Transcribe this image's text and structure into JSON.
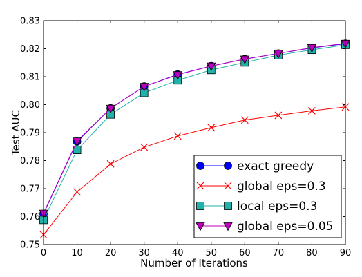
{
  "chart_data": {
    "type": "line",
    "xlabel": "Number of Iterations",
    "ylabel": "Test AUC",
    "xlim": [
      0,
      90
    ],
    "ylim": [
      0.75,
      0.83
    ],
    "x": [
      0,
      10,
      20,
      30,
      40,
      50,
      60,
      70,
      80,
      90
    ],
    "xticks": [
      "0",
      "10",
      "20",
      "30",
      "40",
      "50",
      "60",
      "70",
      "80",
      "90"
    ],
    "yticks": [
      "0.75",
      "0.76",
      "0.77",
      "0.78",
      "0.79",
      "0.80",
      "0.81",
      "0.82",
      "0.83"
    ],
    "grid": false,
    "legend_position": "lower-right",
    "series": [
      {
        "name": "exact greedy",
        "color": "#0000ff",
        "marker": "circle",
        "values": [
          0.761,
          0.7868,
          0.7987,
          0.8065,
          0.8108,
          0.8138,
          0.8163,
          0.8183,
          0.8203,
          0.8218
        ]
      },
      {
        "name": "global eps=0.3",
        "color": "#ff0000",
        "marker": "x",
        "values": [
          0.7535,
          0.7688,
          0.7788,
          0.7848,
          0.7888,
          0.7918,
          0.7945,
          0.7962,
          0.7978,
          0.7992
        ]
      },
      {
        "name": "local eps=0.3",
        "color": "#20b2aa",
        "marker": "square",
        "values": [
          0.7588,
          0.7838,
          0.7965,
          0.8042,
          0.8087,
          0.8124,
          0.8151,
          0.8177,
          0.8196,
          0.8214
        ]
      },
      {
        "name": "global eps=0.05",
        "color": "#bf00bf",
        "marker": "triangle-down",
        "values": [
          0.7612,
          0.787,
          0.7987,
          0.8065,
          0.8107,
          0.8138,
          0.8163,
          0.8183,
          0.8204,
          0.8219
        ]
      }
    ]
  }
}
